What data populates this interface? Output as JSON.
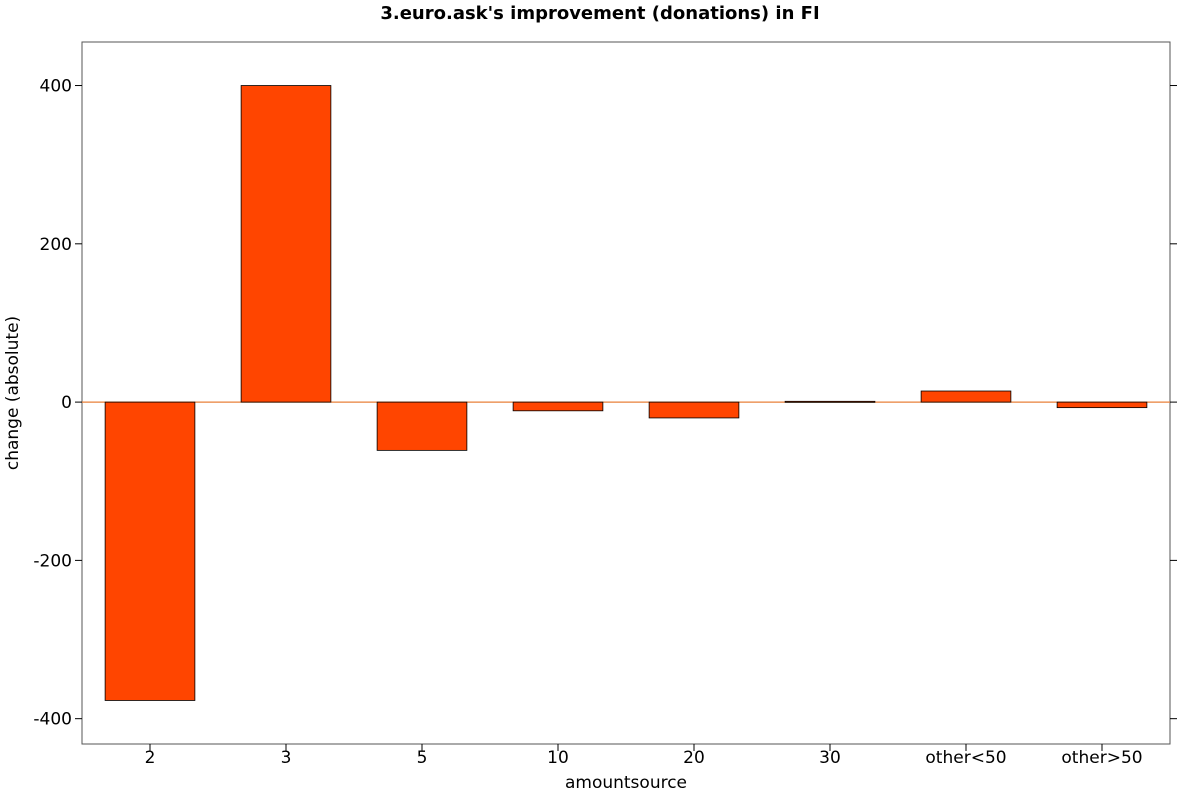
{
  "chart_data": {
    "type": "bar",
    "title": "3.euro.ask's improvement (donations) in FI",
    "xlabel": "amountsource",
    "ylabel": "change (absolute)",
    "categories": [
      "2",
      "3",
      "5",
      "10",
      "20",
      "30",
      "other<50",
      "other>50"
    ],
    "values": [
      -377,
      400,
      -61,
      -11,
      -20,
      1,
      14,
      -7
    ],
    "yticks": [
      -400,
      -200,
      0,
      200,
      400
    ],
    "ylim": [
      -432,
      455
    ],
    "grid": false,
    "legend": "none",
    "colors": {
      "bar_fill": "#ff4500",
      "bar_edge": "#000000",
      "zero_line": "#e8803a",
      "frame": "#000000"
    }
  }
}
